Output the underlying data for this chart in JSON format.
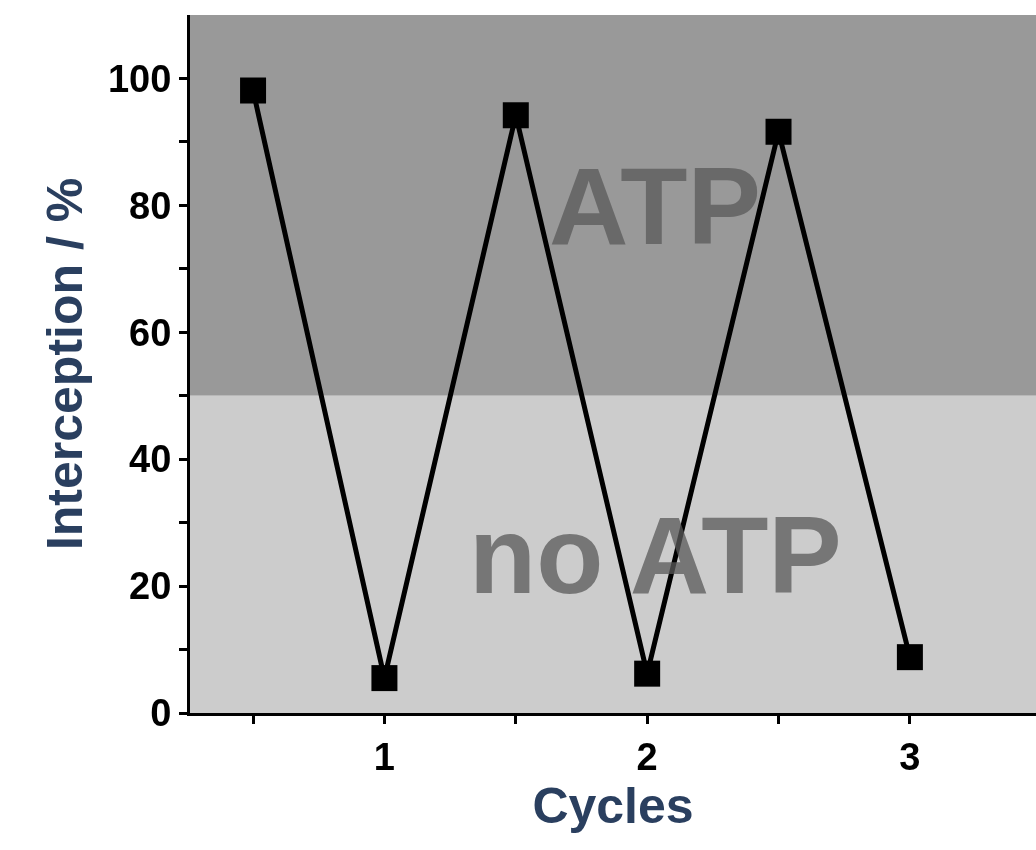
{
  "chart_data": {
    "type": "line",
    "xlabel": "Cycles",
    "ylabel": "Interception / %",
    "x": [
      0.5,
      1,
      1.5,
      2,
      2.5,
      3
    ],
    "series": [
      {
        "color": "#000000",
        "values": [
          98.1,
          5.5,
          94.2,
          6.2,
          91.6,
          8.8
        ]
      }
    ],
    "xlim": [
      0.26,
      3.48
    ],
    "ylim": [
      0,
      110
    ],
    "xticks": [
      {
        "value": 0.5,
        "label": null
      },
      1,
      {
        "value": 1.5,
        "label": null
      },
      2,
      {
        "value": 2.5,
        "label": null
      },
      3
    ],
    "yticks": [
      0,
      {
        "value": 10,
        "label": null
      },
      20,
      {
        "value": 30,
        "label": null
      },
      40,
      {
        "value": 50,
        "label": null
      },
      60,
      {
        "value": 70,
        "label": null
      },
      80,
      {
        "value": 90,
        "label": null
      },
      100
    ],
    "bands": [
      {
        "axis": "y",
        "from": 50,
        "to": 110,
        "label": "ATP",
        "color": "#999999"
      },
      {
        "axis": "y",
        "from": 0,
        "to": 50,
        "label": "no ATP",
        "color": "#cccccc"
      }
    ],
    "marker": "square",
    "line_style": "solid",
    "grid": false,
    "legend": false
  }
}
